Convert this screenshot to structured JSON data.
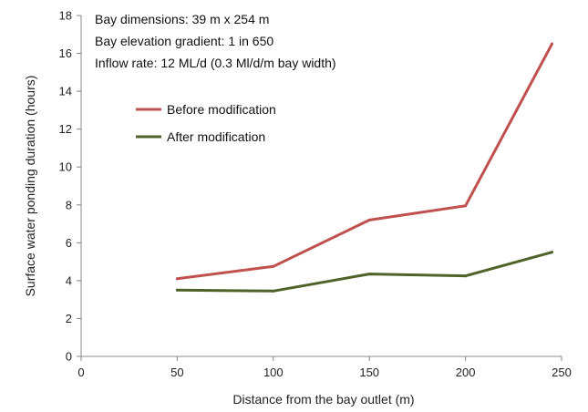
{
  "chart_data": {
    "type": "line",
    "x": [
      50,
      100,
      150,
      200,
      245
    ],
    "series": [
      {
        "name": "Before modification",
        "color": "#c0504d",
        "values": [
          4.1,
          4.75,
          7.2,
          7.95,
          16.5
        ]
      },
      {
        "name": "After modification",
        "color": "#4f6228",
        "values": [
          3.5,
          3.45,
          4.35,
          4.25,
          5.5
        ]
      }
    ],
    "xlabel": "Distance from the bay outlet (m)",
    "ylabel": "Surface water ponding duration (hours)",
    "xlim": [
      0,
      250
    ],
    "ylim": [
      0,
      18
    ],
    "xticks": [
      "0",
      "50",
      "100",
      "150",
      "200",
      "250"
    ],
    "yticks": [
      "0",
      "2",
      "4",
      "6",
      "8",
      "10",
      "12",
      "14",
      "16",
      "18"
    ],
    "grid": false,
    "legend_position": "upper-left",
    "annotations": [
      "Bay dimensions: 39 m x 254 m",
      "Bay elevation gradient: 1 in 650",
      "Inflow rate: 12 ML/d (0.3 Ml/d/m bay width)"
    ]
  }
}
